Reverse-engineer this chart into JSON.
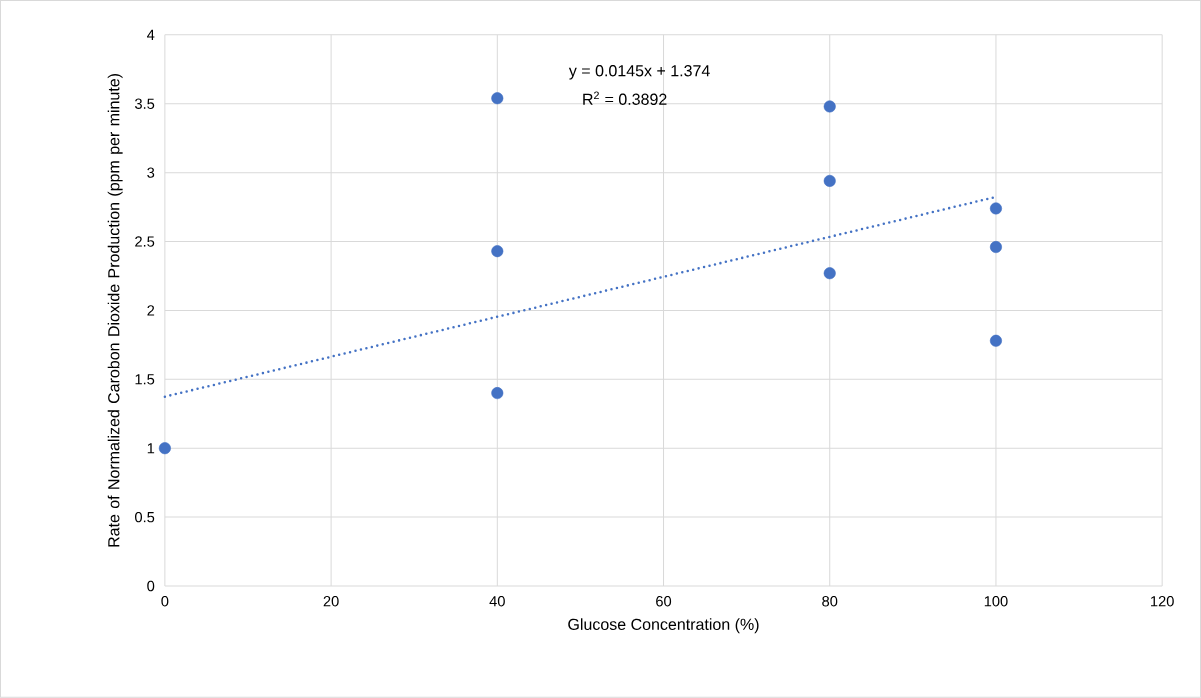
{
  "chart_data": {
    "type": "scatter",
    "xlabel": "Glucose Concentration (%)",
    "ylabel": "Rate of Normalized Carobon Dioxide Production (ppm per minute)",
    "xlim": [
      0,
      120
    ],
    "xticks": [
      0,
      20,
      40,
      60,
      80,
      100,
      120
    ],
    "ylim": [
      0,
      4
    ],
    "yticks": [
      0,
      0.5,
      1,
      1.5,
      2,
      2.5,
      3,
      3.5,
      4
    ],
    "grid": true,
    "marker": "circle",
    "series": [
      {
        "color": "#4472c4",
        "x": [
          0,
          40,
          40,
          40,
          80,
          80,
          80,
          100,
          100,
          100
        ],
        "values": [
          1.0,
          3.54,
          2.43,
          1.4,
          3.48,
          2.94,
          2.27,
          2.74,
          2.46,
          1.78
        ]
      },
      {
        "type": "line",
        "color": "#4472c4",
        "line_style": "dotted",
        "marker": "none",
        "x": [
          0,
          100
        ],
        "values": [
          1.374,
          2.824
        ]
      }
    ],
    "annotations": [
      "y = 0.0145x + 1.374",
      "R$^{2}$ = 0.3892"
    ]
  }
}
